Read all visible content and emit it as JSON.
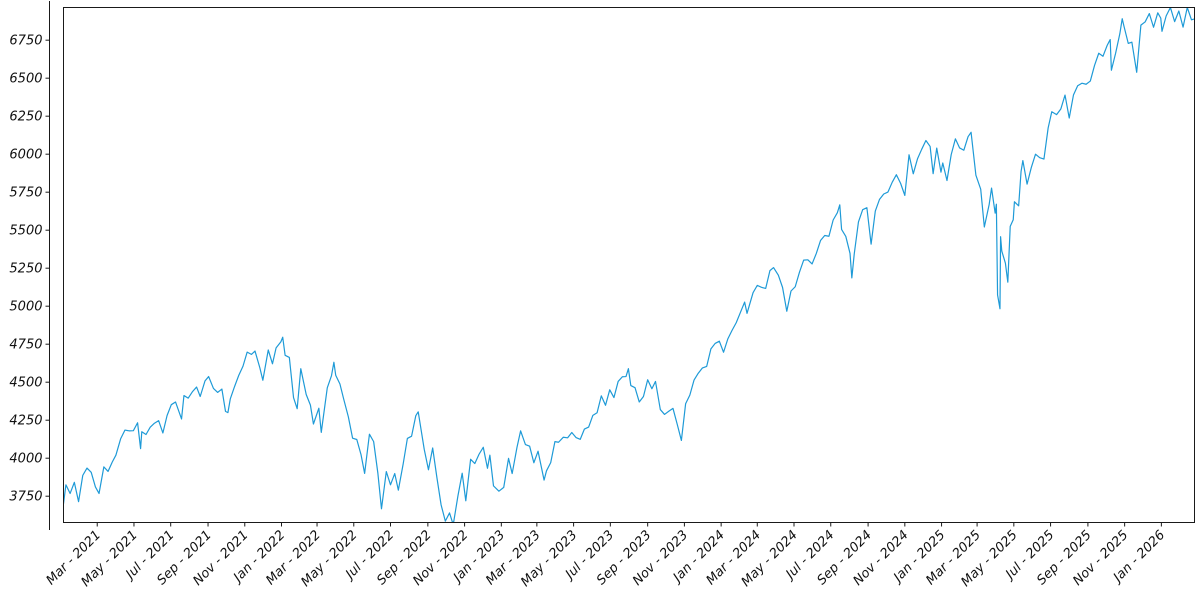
{
  "chart_data": {
    "type": "line",
    "title": "",
    "xlabel": "",
    "ylabel": "",
    "grid": false,
    "legend": "none",
    "background_color": "#ffffff",
    "line_color": "#1e9ad7",
    "axis_color": "#1a1a1a",
    "x_domain": [
      "2021-01-04",
      "2026-02-25"
    ],
    "ylim": [
      3577,
      6965
    ],
    "yticks": [
      3750,
      4000,
      4250,
      4500,
      4750,
      5000,
      5250,
      5500,
      5750,
      6000,
      6250,
      6500,
      6750
    ],
    "xticks": [
      [
        "2021-03-01",
        "Mar - 2021"
      ],
      [
        "2021-05-01",
        "May - 2021"
      ],
      [
        "2021-07-01",
        "Jul - 2021"
      ],
      [
        "2021-09-01",
        "Sep - 2021"
      ],
      [
        "2021-11-01",
        "Nov - 2021"
      ],
      [
        "2022-01-01",
        "Jan - 2022"
      ],
      [
        "2022-03-01",
        "Mar - 2022"
      ],
      [
        "2022-05-01",
        "May - 2022"
      ],
      [
        "2022-07-01",
        "Jul - 2022"
      ],
      [
        "2022-09-01",
        "Sep - 2022"
      ],
      [
        "2022-11-01",
        "Nov - 2022"
      ],
      [
        "2023-01-01",
        "Jan - 2023"
      ],
      [
        "2023-03-01",
        "Mar - 2023"
      ],
      [
        "2023-05-01",
        "May - 2023"
      ],
      [
        "2023-07-01",
        "Jul - 2023"
      ],
      [
        "2023-09-01",
        "Sep - 2023"
      ],
      [
        "2023-11-01",
        "Nov - 2023"
      ],
      [
        "2024-01-01",
        "Jan - 2024"
      ],
      [
        "2024-03-01",
        "Mar - 2024"
      ],
      [
        "2024-05-01",
        "May - 2024"
      ],
      [
        "2024-07-01",
        "Jul - 2024"
      ],
      [
        "2024-09-01",
        "Sep - 2024"
      ],
      [
        "2024-11-01",
        "Nov - 2024"
      ],
      [
        "2025-01-01",
        "Jan - 2025"
      ],
      [
        "2025-03-01",
        "Mar - 2025"
      ],
      [
        "2025-05-01",
        "May - 2025"
      ],
      [
        "2025-07-01",
        "Jul - 2025"
      ],
      [
        "2025-09-01",
        "Sep - 2025"
      ],
      [
        "2025-11-01",
        "Nov - 2025"
      ],
      [
        "2026-01-01",
        "Jan - 2026"
      ]
    ],
    "points": [
      [
        "2021-01-04",
        3700
      ],
      [
        "2021-01-08",
        3825
      ],
      [
        "2021-01-15",
        3768
      ],
      [
        "2021-01-22",
        3841
      ],
      [
        "2021-01-29",
        3714
      ],
      [
        "2021-02-05",
        3887
      ],
      [
        "2021-02-12",
        3935
      ],
      [
        "2021-02-19",
        3907
      ],
      [
        "2021-02-26",
        3811
      ],
      [
        "2021-03-04",
        3768
      ],
      [
        "2021-03-12",
        3943
      ],
      [
        "2021-03-19",
        3913
      ],
      [
        "2021-03-26",
        3975
      ],
      [
        "2021-04-01",
        4020
      ],
      [
        "2021-04-09",
        4129
      ],
      [
        "2021-04-16",
        4185
      ],
      [
        "2021-04-23",
        4180
      ],
      [
        "2021-04-30",
        4181
      ],
      [
        "2021-05-07",
        4233
      ],
      [
        "2021-05-12",
        4063
      ],
      [
        "2021-05-14",
        4174
      ],
      [
        "2021-05-21",
        4156
      ],
      [
        "2021-05-28",
        4204
      ],
      [
        "2021-06-04",
        4230
      ],
      [
        "2021-06-11",
        4247
      ],
      [
        "2021-06-18",
        4166
      ],
      [
        "2021-06-25",
        4281
      ],
      [
        "2021-07-02",
        4352
      ],
      [
        "2021-07-09",
        4370
      ],
      [
        "2021-07-19",
        4258
      ],
      [
        "2021-07-23",
        4412
      ],
      [
        "2021-07-30",
        4395
      ],
      [
        "2021-08-06",
        4437
      ],
      [
        "2021-08-13",
        4468
      ],
      [
        "2021-08-19",
        4406
      ],
      [
        "2021-08-27",
        4509
      ],
      [
        "2021-09-02",
        4537
      ],
      [
        "2021-09-10",
        4459
      ],
      [
        "2021-09-17",
        4433
      ],
      [
        "2021-09-24",
        4455
      ],
      [
        "2021-09-30",
        4308
      ],
      [
        "2021-10-04",
        4300
      ],
      [
        "2021-10-08",
        4391
      ],
      [
        "2021-10-15",
        4471
      ],
      [
        "2021-10-22",
        4545
      ],
      [
        "2021-10-29",
        4605
      ],
      [
        "2021-11-05",
        4698
      ],
      [
        "2021-11-12",
        4683
      ],
      [
        "2021-11-18",
        4705
      ],
      [
        "2021-11-26",
        4595
      ],
      [
        "2021-12-01",
        4513
      ],
      [
        "2021-12-10",
        4712
      ],
      [
        "2021-12-17",
        4621
      ],
      [
        "2021-12-23",
        4726
      ],
      [
        "2021-12-31",
        4766
      ],
      [
        "2022-01-03",
        4796
      ],
      [
        "2022-01-07",
        4677
      ],
      [
        "2022-01-14",
        4663
      ],
      [
        "2022-01-21",
        4398
      ],
      [
        "2022-01-27",
        4326
      ],
      [
        "2022-02-02",
        4589
      ],
      [
        "2022-02-11",
        4419
      ],
      [
        "2022-02-18",
        4349
      ],
      [
        "2022-02-23",
        4225
      ],
      [
        "2022-03-04",
        4329
      ],
      [
        "2022-03-08",
        4170
      ],
      [
        "2022-03-18",
        4463
      ],
      [
        "2022-03-25",
        4543
      ],
      [
        "2022-03-29",
        4631
      ],
      [
        "2022-04-01",
        4546
      ],
      [
        "2022-04-08",
        4488
      ],
      [
        "2022-04-14",
        4393
      ],
      [
        "2022-04-22",
        4272
      ],
      [
        "2022-04-29",
        4132
      ],
      [
        "2022-05-06",
        4123
      ],
      [
        "2022-05-13",
        4024
      ],
      [
        "2022-05-19",
        3900
      ],
      [
        "2022-05-27",
        4158
      ],
      [
        "2022-06-03",
        4109
      ],
      [
        "2022-06-10",
        3901
      ],
      [
        "2022-06-16",
        3667
      ],
      [
        "2022-06-24",
        3912
      ],
      [
        "2022-07-01",
        3825
      ],
      [
        "2022-07-08",
        3899
      ],
      [
        "2022-07-14",
        3790
      ],
      [
        "2022-07-22",
        3962
      ],
      [
        "2022-07-29",
        4130
      ],
      [
        "2022-08-05",
        4145
      ],
      [
        "2022-08-12",
        4280
      ],
      [
        "2022-08-16",
        4305
      ],
      [
        "2022-08-26",
        4058
      ],
      [
        "2022-09-02",
        3924
      ],
      [
        "2022-09-09",
        4067
      ],
      [
        "2022-09-16",
        3873
      ],
      [
        "2022-09-23",
        3693
      ],
      [
        "2022-09-30",
        3586
      ],
      [
        "2022-10-07",
        3640
      ],
      [
        "2022-10-12",
        3577
      ],
      [
        "2022-10-14",
        3583
      ],
      [
        "2022-10-21",
        3753
      ],
      [
        "2022-10-28",
        3901
      ],
      [
        "2022-11-03",
        3720
      ],
      [
        "2022-11-11",
        3993
      ],
      [
        "2022-11-18",
        3965
      ],
      [
        "2022-11-25",
        4026
      ],
      [
        "2022-12-02",
        4072
      ],
      [
        "2022-12-09",
        3934
      ],
      [
        "2022-12-13",
        4020
      ],
      [
        "2022-12-19",
        3818
      ],
      [
        "2022-12-28",
        3783
      ],
      [
        "2023-01-05",
        3808
      ],
      [
        "2023-01-13",
        3999
      ],
      [
        "2023-01-19",
        3899
      ],
      [
        "2023-01-27",
        4071
      ],
      [
        "2023-02-02",
        4180
      ],
      [
        "2023-02-10",
        4090
      ],
      [
        "2023-02-17",
        4079
      ],
      [
        "2023-02-24",
        3970
      ],
      [
        "2023-03-03",
        4046
      ],
      [
        "2023-03-13",
        3856
      ],
      [
        "2023-03-17",
        3917
      ],
      [
        "2023-03-24",
        3971
      ],
      [
        "2023-03-31",
        4109
      ],
      [
        "2023-04-06",
        4105
      ],
      [
        "2023-04-14",
        4138
      ],
      [
        "2023-04-21",
        4134
      ],
      [
        "2023-04-28",
        4169
      ],
      [
        "2023-05-05",
        4136
      ],
      [
        "2023-05-12",
        4124
      ],
      [
        "2023-05-19",
        4192
      ],
      [
        "2023-05-26",
        4205
      ],
      [
        "2023-06-02",
        4282
      ],
      [
        "2023-06-09",
        4299
      ],
      [
        "2023-06-16",
        4410
      ],
      [
        "2023-06-23",
        4348
      ],
      [
        "2023-06-30",
        4450
      ],
      [
        "2023-07-07",
        4399
      ],
      [
        "2023-07-14",
        4505
      ],
      [
        "2023-07-21",
        4536
      ],
      [
        "2023-07-27",
        4537
      ],
      [
        "2023-07-31",
        4589
      ],
      [
        "2023-08-04",
        4478
      ],
      [
        "2023-08-11",
        4464
      ],
      [
        "2023-08-18",
        4370
      ],
      [
        "2023-08-25",
        4406
      ],
      [
        "2023-09-01",
        4516
      ],
      [
        "2023-09-08",
        4457
      ],
      [
        "2023-09-14",
        4505
      ],
      [
        "2023-09-22",
        4320
      ],
      [
        "2023-09-29",
        4288
      ],
      [
        "2023-10-06",
        4309
      ],
      [
        "2023-10-13",
        4328
      ],
      [
        "2023-10-20",
        4224
      ],
      [
        "2023-10-27",
        4117
      ],
      [
        "2023-11-03",
        4358
      ],
      [
        "2023-11-10",
        4415
      ],
      [
        "2023-11-17",
        4514
      ],
      [
        "2023-11-24",
        4559
      ],
      [
        "2023-12-01",
        4594
      ],
      [
        "2023-12-08",
        4604
      ],
      [
        "2023-12-15",
        4719
      ],
      [
        "2023-12-22",
        4755
      ],
      [
        "2023-12-29",
        4770
      ],
      [
        "2024-01-05",
        4697
      ],
      [
        "2024-01-12",
        4784
      ],
      [
        "2024-01-19",
        4840
      ],
      [
        "2024-01-26",
        4891
      ],
      [
        "2024-02-02",
        4959
      ],
      [
        "2024-02-09",
        5027
      ],
      [
        "2024-02-13",
        4953
      ],
      [
        "2024-02-23",
        5089
      ],
      [
        "2024-03-01",
        5137
      ],
      [
        "2024-03-08",
        5124
      ],
      [
        "2024-03-15",
        5117
      ],
      [
        "2024-03-22",
        5234
      ],
      [
        "2024-03-28",
        5254
      ],
      [
        "2024-04-05",
        5204
      ],
      [
        "2024-04-12",
        5123
      ],
      [
        "2024-04-19",
        4967
      ],
      [
        "2024-04-26",
        5100
      ],
      [
        "2024-05-03",
        5128
      ],
      [
        "2024-05-10",
        5223
      ],
      [
        "2024-05-17",
        5303
      ],
      [
        "2024-05-24",
        5305
      ],
      [
        "2024-05-31",
        5278
      ],
      [
        "2024-06-07",
        5347
      ],
      [
        "2024-06-14",
        5432
      ],
      [
        "2024-06-21",
        5465
      ],
      [
        "2024-06-28",
        5460
      ],
      [
        "2024-07-05",
        5567
      ],
      [
        "2024-07-12",
        5615
      ],
      [
        "2024-07-16",
        5667
      ],
      [
        "2024-07-19",
        5505
      ],
      [
        "2024-07-26",
        5459
      ],
      [
        "2024-08-02",
        5347
      ],
      [
        "2024-08-05",
        5186
      ],
      [
        "2024-08-09",
        5344
      ],
      [
        "2024-08-16",
        5554
      ],
      [
        "2024-08-23",
        5635
      ],
      [
        "2024-08-30",
        5648
      ],
      [
        "2024-09-06",
        5408
      ],
      [
        "2024-09-13",
        5626
      ],
      [
        "2024-09-20",
        5703
      ],
      [
        "2024-09-27",
        5738
      ],
      [
        "2024-10-04",
        5751
      ],
      [
        "2024-10-11",
        5815
      ],
      [
        "2024-10-18",
        5865
      ],
      [
        "2024-10-25",
        5808
      ],
      [
        "2024-11-01",
        5729
      ],
      [
        "2024-11-08",
        5996
      ],
      [
        "2024-11-15",
        5871
      ],
      [
        "2024-11-22",
        5969
      ],
      [
        "2024-11-29",
        6032
      ],
      [
        "2024-12-06",
        6090
      ],
      [
        "2024-12-13",
        6051
      ],
      [
        "2024-12-18",
        5872
      ],
      [
        "2024-12-24",
        6040
      ],
      [
        "2024-12-31",
        5882
      ],
      [
        "2025-01-03",
        5942
      ],
      [
        "2025-01-10",
        5827
      ],
      [
        "2025-01-17",
        5997
      ],
      [
        "2025-01-24",
        6101
      ],
      [
        "2025-01-31",
        6041
      ],
      [
        "2025-02-07",
        6026
      ],
      [
        "2025-02-14",
        6115
      ],
      [
        "2025-02-19",
        6144
      ],
      [
        "2025-02-27",
        5862
      ],
      [
        "2025-03-07",
        5770
      ],
      [
        "2025-03-13",
        5521
      ],
      [
        "2025-03-21",
        5668
      ],
      [
        "2025-03-25",
        5777
      ],
      [
        "2025-03-31",
        5612
      ],
      [
        "2025-04-02",
        5671
      ],
      [
        "2025-04-04",
        5074
      ],
      [
        "2025-04-08",
        4983
      ],
      [
        "2025-04-09",
        5457
      ],
      [
        "2025-04-11",
        5363
      ],
      [
        "2025-04-17",
        5283
      ],
      [
        "2025-04-21",
        5158
      ],
      [
        "2025-04-25",
        5525
      ],
      [
        "2025-04-30",
        5569
      ],
      [
        "2025-05-02",
        5687
      ],
      [
        "2025-05-09",
        5660
      ],
      [
        "2025-05-13",
        5886
      ],
      [
        "2025-05-16",
        5958
      ],
      [
        "2025-05-23",
        5803
      ],
      [
        "2025-05-30",
        5912
      ],
      [
        "2025-06-06",
        6000
      ],
      [
        "2025-06-13",
        5977
      ],
      [
        "2025-06-20",
        5968
      ],
      [
        "2025-06-27",
        6173
      ],
      [
        "2025-07-03",
        6279
      ],
      [
        "2025-07-11",
        6260
      ],
      [
        "2025-07-18",
        6297
      ],
      [
        "2025-07-25",
        6389
      ],
      [
        "2025-08-01",
        6238
      ],
      [
        "2025-08-08",
        6389
      ],
      [
        "2025-08-15",
        6450
      ],
      [
        "2025-08-22",
        6467
      ],
      [
        "2025-08-29",
        6460
      ],
      [
        "2025-09-05",
        6481
      ],
      [
        "2025-09-12",
        6584
      ],
      [
        "2025-09-19",
        6664
      ],
      [
        "2025-09-26",
        6644
      ],
      [
        "2025-10-03",
        6716
      ],
      [
        "2025-10-08",
        6754
      ],
      [
        "2025-10-10",
        6552
      ],
      [
        "2025-10-17",
        6664
      ],
      [
        "2025-10-24",
        6792
      ],
      [
        "2025-10-28",
        6891
      ],
      [
        "2025-10-31",
        6840
      ],
      [
        "2025-11-07",
        6729
      ],
      [
        "2025-11-13",
        6737
      ],
      [
        "2025-11-21",
        6539
      ],
      [
        "2025-11-28",
        6849
      ],
      [
        "2025-12-05",
        6870
      ],
      [
        "2025-12-12",
        6925
      ],
      [
        "2025-12-19",
        6835
      ],
      [
        "2025-12-26",
        6930
      ],
      [
        "2025-12-31",
        6895
      ],
      [
        "2026-01-02",
        6808
      ],
      [
        "2026-01-09",
        6910
      ],
      [
        "2026-01-16",
        6965
      ],
      [
        "2026-01-23",
        6872
      ],
      [
        "2026-01-30",
        6942
      ],
      [
        "2026-02-06",
        6836
      ],
      [
        "2026-02-13",
        6965
      ],
      [
        "2026-02-20",
        6884
      ],
      [
        "2026-02-25",
        6890
      ]
    ]
  }
}
